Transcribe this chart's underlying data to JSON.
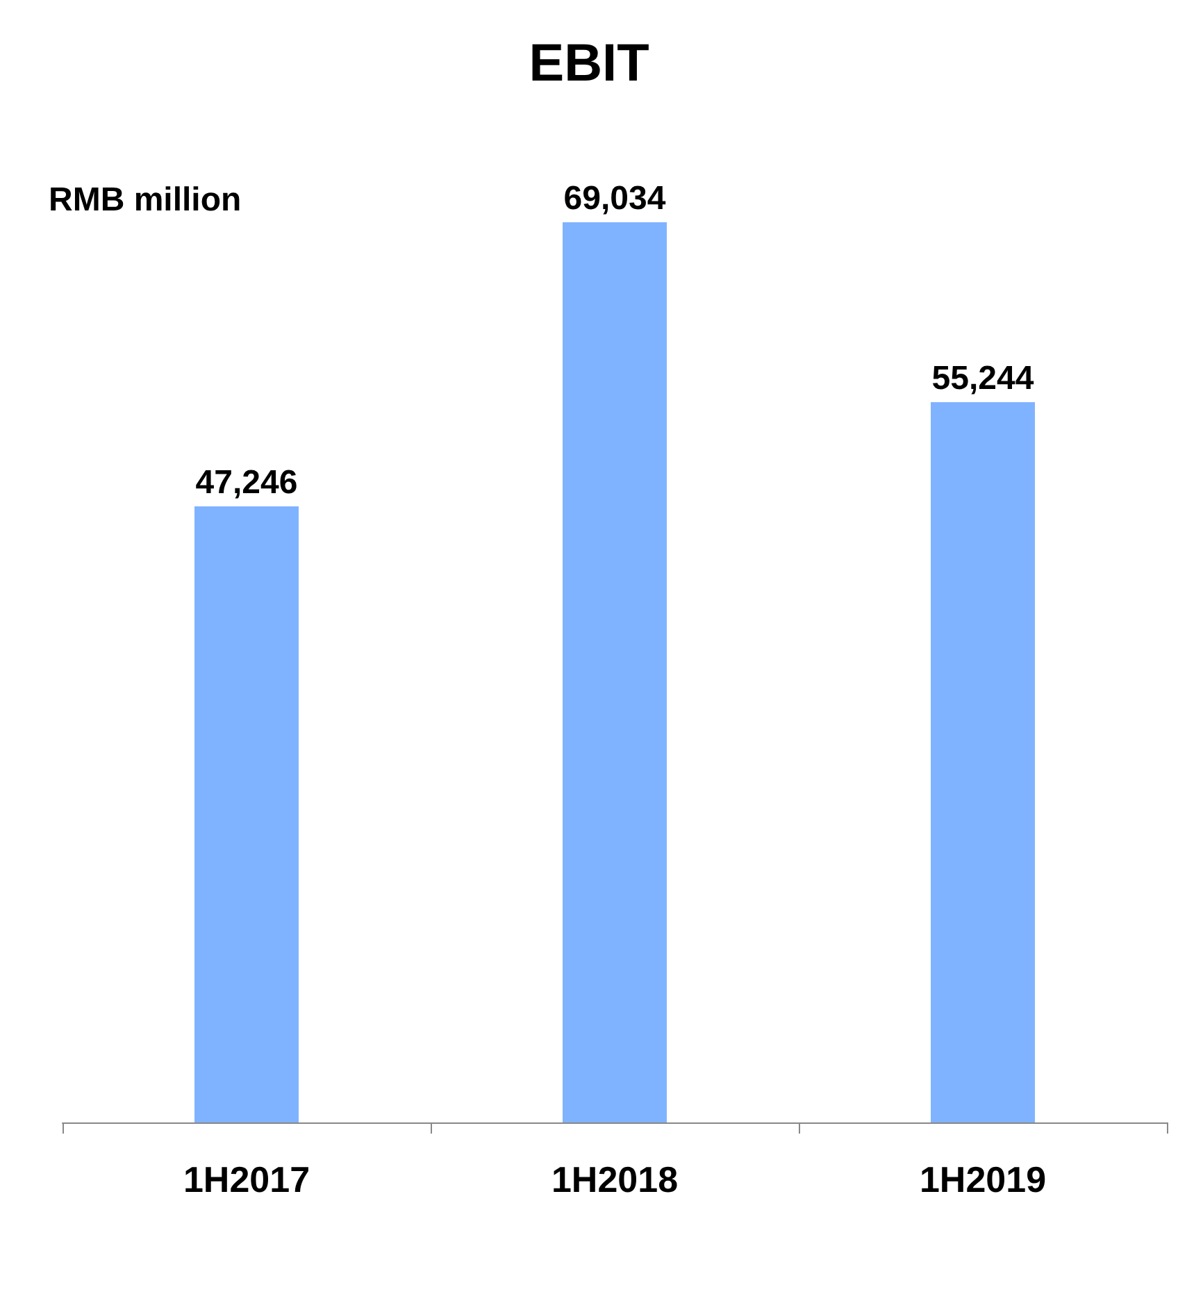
{
  "chart_data": {
    "type": "bar",
    "title": "EBIT",
    "ylabel": "RMB million",
    "categories": [
      "1H2017",
      "1H2018",
      "1H2019"
    ],
    "values": [
      47246,
      69034,
      55244
    ],
    "color": "#80b3ff",
    "value_labels": [
      "47,246",
      "69,034",
      "55,244"
    ]
  }
}
